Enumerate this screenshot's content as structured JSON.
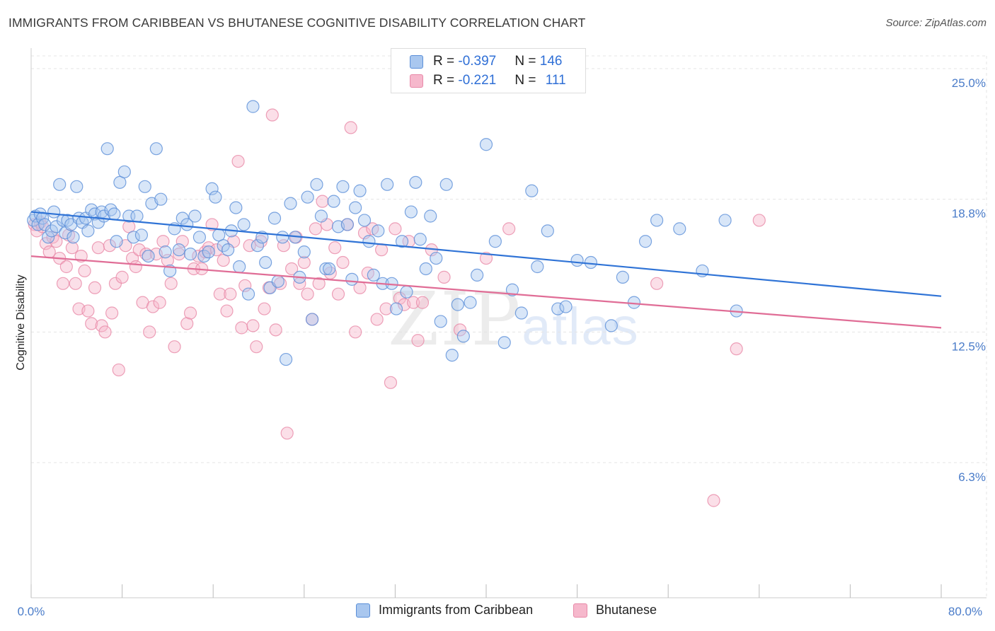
{
  "header": {
    "title": "IMMIGRANTS FROM CARIBBEAN VS BHUTANESE COGNITIVE DISABILITY CORRELATION CHART",
    "source": "Source: ZipAtlas.com"
  },
  "legend": {
    "rows": [
      {
        "r_label": "R = ",
        "r_value": "-0.397",
        "n_label": "N = ",
        "n_value": "146"
      },
      {
        "r_label": "R = ",
        "r_value": "-0.221",
        "n_label": "N = ",
        "n_value": "111"
      }
    ],
    "bottom": [
      "Immigrants from Caribbean",
      "Bhutanese"
    ]
  },
  "watermark": {
    "zip": "ZIP",
    "atlas": "atlas"
  },
  "colors": {
    "blue_fill": "#a9c7ef",
    "blue_stroke": "#5b8fd8",
    "blue_line": "#2f73d6",
    "pink_fill": "#f6b8cc",
    "pink_stroke": "#e889a8",
    "pink_line": "#e06d96",
    "tick_text": "#4a7cc9",
    "grid": "#e4e4e4"
  },
  "chart_data": {
    "type": "scatter",
    "title": "IMMIGRANTS FROM CARIBBEAN VS BHUTANESE COGNITIVE DISABILITY CORRELATION CHART",
    "xlabel": "",
    "ylabel": "Cognitive Disability",
    "xlim": [
      0,
      80
    ],
    "ylim": [
      0,
      26.5
    ],
    "x_tick_labels": [
      "0.0%",
      "80.0%"
    ],
    "y_ticks": [
      6.3,
      12.5,
      18.8,
      25.0
    ],
    "y_tick_labels": [
      "6.3%",
      "12.5%",
      "18.8%",
      "25.0%"
    ],
    "grid": "horizontal dashed",
    "legend_position": "top-center",
    "series": [
      {
        "name": "Immigrants from Caribbean",
        "color": "#5b8fd8",
        "trend": {
          "x": [
            0,
            80
          ],
          "y": [
            18.2,
            14.2
          ]
        },
        "points": [
          [
            0.2,
            17.8
          ],
          [
            0.4,
            18.0
          ],
          [
            0.6,
            17.6
          ],
          [
            0.8,
            18.1
          ],
          [
            1,
            17.9
          ],
          [
            1.2,
            17.6
          ],
          [
            1.5,
            17.0
          ],
          [
            1.8,
            17.3
          ],
          [
            2,
            18.2
          ],
          [
            2.2,
            17.5
          ],
          [
            2.5,
            19.5
          ],
          [
            2.8,
            17.8
          ],
          [
            3,
            17.2
          ],
          [
            3.2,
            17.8
          ],
          [
            3.5,
            17.6
          ],
          [
            3.7,
            17.0
          ],
          [
            4,
            19.4
          ],
          [
            4.2,
            17.9
          ],
          [
            4.5,
            17.7
          ],
          [
            4.8,
            17.9
          ],
          [
            5,
            17.3
          ],
          [
            5.3,
            18.3
          ],
          [
            5.6,
            18.1
          ],
          [
            5.9,
            17.7
          ],
          [
            6.2,
            18.2
          ],
          [
            6.4,
            18.0
          ],
          [
            6.7,
            21.2
          ],
          [
            7,
            18.3
          ],
          [
            7.3,
            18.1
          ],
          [
            7.5,
            16.8
          ],
          [
            7.8,
            19.6
          ],
          [
            8.2,
            20.1
          ],
          [
            8.6,
            18.0
          ],
          [
            9,
            17.0
          ],
          [
            9.3,
            18.0
          ],
          [
            9.7,
            17.1
          ],
          [
            10,
            19.4
          ],
          [
            10.3,
            16.1
          ],
          [
            10.6,
            18.6
          ],
          [
            11,
            21.2
          ],
          [
            11.4,
            18.8
          ],
          [
            11.8,
            16.3
          ],
          [
            12.2,
            15.4
          ],
          [
            12.6,
            17.4
          ],
          [
            13,
            16.4
          ],
          [
            13.3,
            17.9
          ],
          [
            13.7,
            17.6
          ],
          [
            14,
            16.2
          ],
          [
            14.4,
            18.0
          ],
          [
            14.8,
            17.0
          ],
          [
            15.2,
            16.1
          ],
          [
            15.6,
            16.3
          ],
          [
            15.9,
            19.3
          ],
          [
            16.2,
            18.9
          ],
          [
            16.5,
            17.1
          ],
          [
            16.9,
            16.6
          ],
          [
            17.3,
            16.4
          ],
          [
            17.6,
            17.3
          ],
          [
            18,
            18.4
          ],
          [
            18.3,
            15.6
          ],
          [
            18.7,
            17.6
          ],
          [
            19.1,
            14.3
          ],
          [
            19.5,
            23.2
          ],
          [
            19.9,
            16.6
          ],
          [
            20.3,
            17.0
          ],
          [
            20.6,
            15.8
          ],
          [
            21,
            14.6
          ],
          [
            21.4,
            17.9
          ],
          [
            21.7,
            14.9
          ],
          [
            22.1,
            17.0
          ],
          [
            22.4,
            11.2
          ],
          [
            22.8,
            18.6
          ],
          [
            23.2,
            17.0
          ],
          [
            23.6,
            15.1
          ],
          [
            24,
            16.3
          ],
          [
            24.3,
            18.9
          ],
          [
            24.7,
            13.1
          ],
          [
            25.1,
            19.5
          ],
          [
            25.5,
            18.0
          ],
          [
            25.9,
            15.5
          ],
          [
            26.2,
            15.5
          ],
          [
            26.6,
            18.7
          ],
          [
            27,
            17.5
          ],
          [
            27.4,
            19.4
          ],
          [
            27.8,
            17.6
          ],
          [
            28.2,
            15.0
          ],
          [
            28.5,
            18.4
          ],
          [
            28.9,
            19.2
          ],
          [
            29.3,
            17.8
          ],
          [
            29.7,
            16.8
          ],
          [
            30.1,
            15.2
          ],
          [
            30.5,
            17.3
          ],
          [
            30.9,
            14.8
          ],
          [
            31.3,
            19.5
          ],
          [
            31.7,
            14.8
          ],
          [
            32.1,
            13.6
          ],
          [
            32.6,
            16.8
          ],
          [
            33,
            14.4
          ],
          [
            33.4,
            18.2
          ],
          [
            33.8,
            19.6
          ],
          [
            34.2,
            16.9
          ],
          [
            34.7,
            15.5
          ],
          [
            35.1,
            18.0
          ],
          [
            35.6,
            16.0
          ],
          [
            36,
            13.0
          ],
          [
            36.5,
            19.5
          ],
          [
            37,
            11.4
          ],
          [
            37.5,
            13.8
          ],
          [
            38,
            12.3
          ],
          [
            38.6,
            13.9
          ],
          [
            39.2,
            15.2
          ],
          [
            40,
            21.4
          ],
          [
            40.8,
            16.8
          ],
          [
            41.6,
            12.0
          ],
          [
            42.3,
            14.5
          ],
          [
            43.1,
            13.4
          ],
          [
            44,
            19.2
          ],
          [
            44.5,
            15.6
          ],
          [
            45.4,
            17.3
          ],
          [
            46.3,
            13.6
          ],
          [
            47,
            13.7
          ],
          [
            48,
            15.9
          ],
          [
            49.2,
            15.8
          ],
          [
            51,
            12.8
          ],
          [
            52,
            15.1
          ],
          [
            53,
            13.9
          ],
          [
            54,
            16.8
          ],
          [
            55,
            17.8
          ],
          [
            57,
            17.4
          ],
          [
            59,
            15.4
          ],
          [
            61,
            17.8
          ],
          [
            62,
            13.5
          ]
        ]
      },
      {
        "name": "Bhutanese",
        "color": "#e889a8",
        "trend": {
          "x": [
            0,
            80
          ],
          "y": [
            16.1,
            12.7
          ]
        },
        "points": [
          [
            0.3,
            17.6
          ],
          [
            0.5,
            17.3
          ],
          [
            0.8,
            17.7
          ],
          [
            1,
            17.5
          ],
          [
            1.3,
            16.7
          ],
          [
            1.6,
            16.3
          ],
          [
            1.9,
            17.0
          ],
          [
            2.2,
            16.8
          ],
          [
            2.5,
            16.0
          ],
          [
            2.8,
            14.8
          ],
          [
            3.1,
            15.6
          ],
          [
            3.3,
            17.1
          ],
          [
            3.6,
            16.5
          ],
          [
            3.9,
            14.8
          ],
          [
            4.2,
            13.6
          ],
          [
            4.4,
            16.1
          ],
          [
            4.7,
            15.4
          ],
          [
            5,
            13.5
          ],
          [
            5.3,
            12.9
          ],
          [
            5.6,
            14.6
          ],
          [
            5.9,
            16.5
          ],
          [
            6.2,
            12.8
          ],
          [
            6.5,
            12.5
          ],
          [
            6.9,
            16.6
          ],
          [
            7.1,
            13.4
          ],
          [
            7.4,
            14.8
          ],
          [
            7.7,
            10.7
          ],
          [
            8,
            15.1
          ],
          [
            8.3,
            16.6
          ],
          [
            8.6,
            17.5
          ],
          [
            8.9,
            16.0
          ],
          [
            9.2,
            15.6
          ],
          [
            9.5,
            16.4
          ],
          [
            9.8,
            13.9
          ],
          [
            10.1,
            16.2
          ],
          [
            10.4,
            12.5
          ],
          [
            10.7,
            13.7
          ],
          [
            11,
            16.2
          ],
          [
            11.3,
            13.9
          ],
          [
            11.6,
            16.8
          ],
          [
            12,
            15.9
          ],
          [
            12.3,
            14.8
          ],
          [
            12.6,
            11.8
          ],
          [
            13,
            16.2
          ],
          [
            13.3,
            16.8
          ],
          [
            13.7,
            12.9
          ],
          [
            14,
            13.4
          ],
          [
            14.3,
            15.5
          ],
          [
            14.7,
            16.1
          ],
          [
            15,
            15.5
          ],
          [
            15.3,
            16.3
          ],
          [
            15.6,
            16.5
          ],
          [
            15.9,
            17.6
          ],
          [
            16.3,
            16.4
          ],
          [
            16.6,
            14.3
          ],
          [
            16.9,
            15.9
          ],
          [
            17.2,
            13.5
          ],
          [
            17.5,
            14.3
          ],
          [
            17.8,
            16.8
          ],
          [
            18.2,
            20.6
          ],
          [
            18.5,
            12.7
          ],
          [
            18.8,
            14.7
          ],
          [
            19.2,
            16.6
          ],
          [
            19.5,
            12.8
          ],
          [
            19.8,
            11.8
          ],
          [
            20.2,
            16.8
          ],
          [
            20.5,
            13.6
          ],
          [
            20.9,
            14.6
          ],
          [
            21.2,
            22.8
          ],
          [
            21.5,
            12.6
          ],
          [
            21.9,
            14.8
          ],
          [
            22.2,
            16.6
          ],
          [
            22.5,
            7.7
          ],
          [
            22.9,
            15.5
          ],
          [
            23.3,
            17.0
          ],
          [
            23.6,
            14.8
          ],
          [
            24,
            15.8
          ],
          [
            24.3,
            14.3
          ],
          [
            24.7,
            13.1
          ],
          [
            25,
            17.4
          ],
          [
            25.3,
            14.8
          ],
          [
            25.6,
            18.7
          ],
          [
            26,
            17.6
          ],
          [
            26.3,
            15.3
          ],
          [
            26.7,
            16.5
          ],
          [
            27,
            14.3
          ],
          [
            27.4,
            15.8
          ],
          [
            27.8,
            17.6
          ],
          [
            28.1,
            22.2
          ],
          [
            28.5,
            12.5
          ],
          [
            28.9,
            14.6
          ],
          [
            29.3,
            17.2
          ],
          [
            29.6,
            15.3
          ],
          [
            30,
            17.4
          ],
          [
            30.4,
            13.1
          ],
          [
            30.8,
            16.4
          ],
          [
            31.2,
            13.6
          ],
          [
            31.6,
            10.1
          ],
          [
            32,
            17.4
          ],
          [
            32.4,
            14.1
          ],
          [
            32.8,
            13.8
          ],
          [
            33.2,
            16.8
          ],
          [
            33.6,
            13.9
          ],
          [
            34,
            12.1
          ],
          [
            34.4,
            13.9
          ],
          [
            35.2,
            16.4
          ],
          [
            36.3,
            15.1
          ],
          [
            37.7,
            12.6
          ],
          [
            40,
            16.0
          ],
          [
            42,
            17.4
          ],
          [
            55,
            14.8
          ],
          [
            60,
            4.5
          ],
          [
            62,
            11.7
          ],
          [
            64,
            17.8
          ]
        ]
      }
    ]
  }
}
